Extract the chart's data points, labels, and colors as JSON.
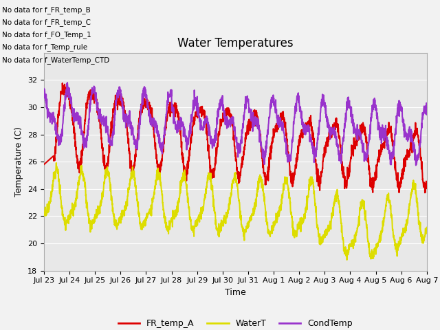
{
  "title": "Water Temperatures",
  "xlabel": "Time",
  "ylabel": "Temperature (C)",
  "ylim": [
    18,
    34
  ],
  "yticks": [
    18,
    20,
    22,
    24,
    26,
    28,
    30,
    32
  ],
  "plot_bg_color": "#e8e8e8",
  "fig_bg_color": "#f2f2f2",
  "no_data_lines": [
    "No data for f_FR_temp_B",
    "No data for f_FR_temp_C",
    "No data for f_FO_Temp_1",
    "No data for f_Temp_rule",
    "No data for f_WaterTemp_CTD"
  ],
  "legend": [
    {
      "label": "FR_temp_A",
      "color": "#dd0000"
    },
    {
      "label": "WaterT",
      "color": "#dddd00"
    },
    {
      "label": "CondTemp",
      "color": "#9933cc"
    }
  ],
  "line_width": 1.5,
  "num_points": 2000
}
